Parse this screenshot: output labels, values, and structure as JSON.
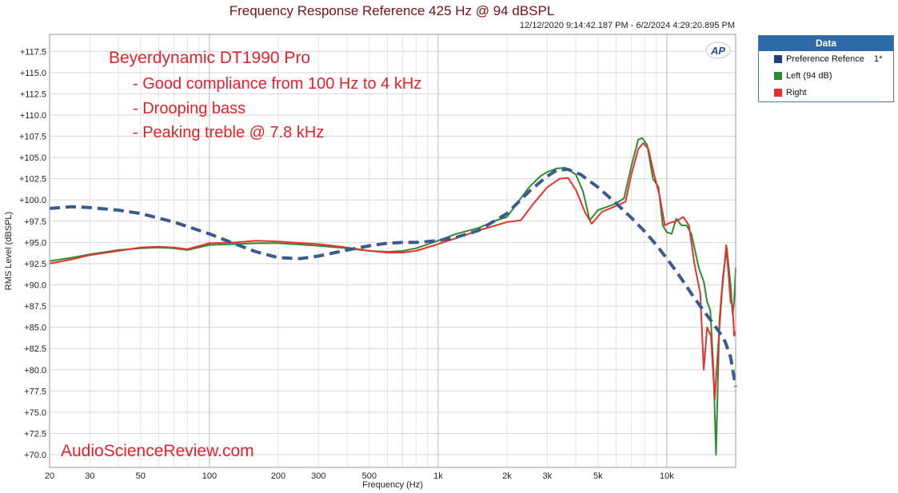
{
  "title": "Frequency Response Reference 425 Hz @ 94 dBSPL",
  "timestamp": "12/12/2020 9:14:42.187 PM - 6/2/2024 4:29:20.895 PM",
  "logo_text": "AP",
  "annotations": {
    "model": "Beyerdynamic DT1990 Pro",
    "line1": "- Good compliance from 100 Hz to 4 kHz",
    "line2": "- Drooping bass",
    "line3": "- Peaking treble @ 7.8 kHz"
  },
  "watermark": "AudioScienceReview.com",
  "legend": {
    "header": "Data",
    "items": [
      {
        "label": "Preference Refence",
        "color": "#1f3f7a",
        "mark": "1*"
      },
      {
        "label": "Left (94 dB)",
        "color": "#2e8b2e",
        "mark": ""
      },
      {
        "label": "Right",
        "color": "#e8312f",
        "mark": ""
      }
    ]
  },
  "chart_data": {
    "type": "line",
    "title": "Frequency Response Reference 425 Hz @ 94 dBSPL",
    "xlabel": "Frequency (Hz)",
    "ylabel": "RMS Level (dBSPL)",
    "x_scale": "log",
    "xlim": [
      20,
      20000
    ],
    "ylim": [
      68.5,
      119.5
    ],
    "grid": true,
    "legend_position": "top-right, outside plot",
    "x_tick_labels": [
      "20",
      "30",
      "50",
      "100",
      "200",
      "300",
      "500",
      "1k",
      "2k",
      "3k",
      "5k",
      "10k"
    ],
    "x_tick_values": [
      20,
      30,
      50,
      100,
      200,
      300,
      500,
      1000,
      2000,
      3000,
      5000,
      10000
    ],
    "y_tick_values": [
      70,
      72.5,
      75,
      77.5,
      80,
      82.5,
      85,
      87.5,
      90,
      92.5,
      95,
      97.5,
      100,
      102.5,
      105,
      107.5,
      110,
      112.5,
      115,
      117.5
    ],
    "y_tick_labels": [
      "+70.0",
      "+72.5",
      "+75.0",
      "+77.5",
      "+80.0",
      "+82.5",
      "+85.0",
      "+87.5",
      "+90.0",
      "+92.5",
      "+95.0",
      "+97.5",
      "+100.0",
      "+102.5",
      "+105.0",
      "+107.5",
      "+110.0",
      "+112.5",
      "+115.0",
      "+117.5"
    ],
    "series": [
      {
        "name": "Preference Refence",
        "color": "#3b5a8f",
        "style": "dashed",
        "points": [
          [
            20,
            99.0
          ],
          [
            25,
            99.2
          ],
          [
            30,
            99.1
          ],
          [
            40,
            98.8
          ],
          [
            50,
            98.4
          ],
          [
            70,
            97.4
          ],
          [
            100,
            96.0
          ],
          [
            130,
            94.8
          ],
          [
            160,
            93.9
          ],
          [
            200,
            93.2
          ],
          [
            250,
            93.1
          ],
          [
            300,
            93.4
          ],
          [
            400,
            94.1
          ],
          [
            500,
            94.6
          ],
          [
            600,
            94.9
          ],
          [
            700,
            95.0
          ],
          [
            800,
            95.0
          ],
          [
            1000,
            95.2
          ],
          [
            1200,
            95.6
          ],
          [
            1500,
            96.4
          ],
          [
            2000,
            98.4
          ],
          [
            2500,
            101.0
          ],
          [
            3000,
            102.8
          ],
          [
            3300,
            103.5
          ],
          [
            3700,
            103.6
          ],
          [
            4200,
            103.0
          ],
          [
            5000,
            101.5
          ],
          [
            6000,
            99.6
          ],
          [
            7000,
            97.9
          ],
          [
            8000,
            96.3
          ],
          [
            9000,
            94.7
          ],
          [
            10000,
            93.1
          ],
          [
            11000,
            91.6
          ],
          [
            12000,
            90.1
          ],
          [
            13000,
            88.7
          ],
          [
            14000,
            87.5
          ],
          [
            15000,
            86.4
          ],
          [
            16000,
            85.4
          ],
          [
            17000,
            84.4
          ],
          [
            18000,
            83.3
          ],
          [
            19000,
            81.5
          ],
          [
            20000,
            78.0
          ]
        ]
      },
      {
        "name": "Left (94 dB)",
        "color": "#2e8b2e",
        "style": "solid",
        "points": [
          [
            20,
            92.8
          ],
          [
            25,
            93.2
          ],
          [
            30,
            93.6
          ],
          [
            40,
            94.1
          ],
          [
            50,
            94.3
          ],
          [
            60,
            94.4
          ],
          [
            70,
            94.3
          ],
          [
            80,
            94.1
          ],
          [
            100,
            94.7
          ],
          [
            130,
            94.8
          ],
          [
            160,
            94.9
          ],
          [
            200,
            94.9
          ],
          [
            300,
            94.6
          ],
          [
            400,
            94.3
          ],
          [
            500,
            94.0
          ],
          [
            600,
            93.9
          ],
          [
            700,
            94.0
          ],
          [
            800,
            94.3
          ],
          [
            1000,
            95.2
          ],
          [
            1200,
            96.0
          ],
          [
            1500,
            96.7
          ],
          [
            1800,
            97.6
          ],
          [
            2000,
            98.0
          ],
          [
            2200,
            99.5
          ],
          [
            2500,
            101.5
          ],
          [
            2800,
            102.8
          ],
          [
            3000,
            103.3
          ],
          [
            3300,
            103.7
          ],
          [
            3600,
            103.8
          ],
          [
            4000,
            103.0
          ],
          [
            4300,
            101.0
          ],
          [
            4600,
            97.6
          ],
          [
            5000,
            98.8
          ],
          [
            5500,
            99.2
          ],
          [
            6000,
            99.6
          ],
          [
            6500,
            100.2
          ],
          [
            7000,
            104.0
          ],
          [
            7500,
            107.1
          ],
          [
            7800,
            107.3
          ],
          [
            8200,
            106.5
          ],
          [
            8700,
            102.5
          ],
          [
            9200,
            101.5
          ],
          [
            9600,
            97.0
          ],
          [
            10000,
            96.2
          ],
          [
            10500,
            96.0
          ],
          [
            11000,
            97.8
          ],
          [
            11600,
            97.0
          ],
          [
            12200,
            97.0
          ],
          [
            12800,
            96.0
          ],
          [
            13300,
            94.0
          ],
          [
            13800,
            92.0
          ],
          [
            14500,
            90.4
          ],
          [
            15000,
            88.0
          ],
          [
            15500,
            87.0
          ],
          [
            16000,
            80.0
          ],
          [
            16400,
            70.0
          ],
          [
            17000,
            86.0
          ],
          [
            17600,
            91.0
          ],
          [
            18300,
            94.3
          ],
          [
            19000,
            90.0
          ],
          [
            19400,
            86.5
          ],
          [
            19700,
            88.0
          ],
          [
            20000,
            92.0
          ]
        ]
      },
      {
        "name": "Right",
        "color": "#e8312f",
        "style": "solid",
        "points": [
          [
            20,
            92.5
          ],
          [
            25,
            93.0
          ],
          [
            30,
            93.5
          ],
          [
            40,
            94.0
          ],
          [
            50,
            94.4
          ],
          [
            60,
            94.5
          ],
          [
            70,
            94.4
          ],
          [
            80,
            94.2
          ],
          [
            100,
            94.9
          ],
          [
            130,
            95.0
          ],
          [
            160,
            95.2
          ],
          [
            200,
            95.1
          ],
          [
            300,
            94.8
          ],
          [
            400,
            94.4
          ],
          [
            500,
            94.0
          ],
          [
            600,
            93.8
          ],
          [
            700,
            93.8
          ],
          [
            800,
            94.0
          ],
          [
            1000,
            94.8
          ],
          [
            1200,
            95.5
          ],
          [
            1500,
            96.4
          ],
          [
            2000,
            97.4
          ],
          [
            2300,
            97.6
          ],
          [
            2600,
            99.5
          ],
          [
            3000,
            101.5
          ],
          [
            3400,
            102.5
          ],
          [
            3700,
            102.6
          ],
          [
            4000,
            101.2
          ],
          [
            4400,
            98.5
          ],
          [
            4700,
            97.2
          ],
          [
            5200,
            98.6
          ],
          [
            6000,
            99.3
          ],
          [
            6600,
            99.8
          ],
          [
            7000,
            103.0
          ],
          [
            7500,
            106.0
          ],
          [
            7900,
            106.7
          ],
          [
            8300,
            106.0
          ],
          [
            8800,
            103.0
          ],
          [
            9300,
            100.5
          ],
          [
            9800,
            97.0
          ],
          [
            10300,
            97.3
          ],
          [
            11000,
            97.5
          ],
          [
            11800,
            98.0
          ],
          [
            12500,
            97.0
          ],
          [
            13200,
            92.5
          ],
          [
            14000,
            89.0
          ],
          [
            14500,
            80.0
          ],
          [
            15000,
            85.0
          ],
          [
            15600,
            84.0
          ],
          [
            16200,
            76.5
          ],
          [
            16800,
            83.0
          ],
          [
            17400,
            89.0
          ],
          [
            18200,
            94.7
          ],
          [
            19000,
            88.0
          ],
          [
            19400,
            87.5
          ],
          [
            19700,
            84.0
          ],
          [
            20000,
            84.5
          ]
        ]
      }
    ]
  }
}
